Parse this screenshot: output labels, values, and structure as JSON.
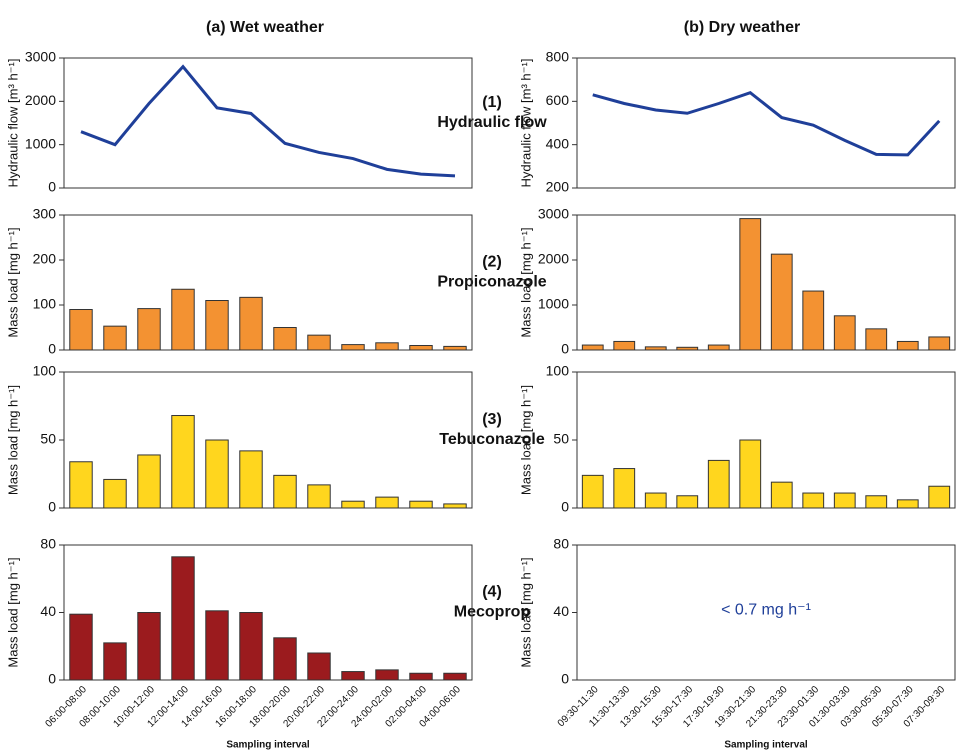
{
  "columns": [
    "(a) Wet weather",
    "(b) Dry weather"
  ],
  "rows": [
    {
      "number": "(1)",
      "label": "Hydraulic flow"
    },
    {
      "number": "(2)",
      "label": "Propiconazole"
    },
    {
      "number": "(3)",
      "label": "Tebuconazole"
    },
    {
      "number": "(4)",
      "label": "Mecoprop"
    }
  ],
  "chart_data": [
    {
      "type": "line",
      "ylabel": "Hydraulic flow [m³ h⁻¹]",
      "color": "#1f3f99",
      "values": [
        1300,
        1000,
        1950,
        2800,
        1850,
        1720,
        1030,
        820,
        680,
        430,
        320,
        280
      ],
      "ylim": [
        0,
        3000
      ],
      "yticks": [
        0,
        1000,
        2000,
        3000
      ]
    },
    {
      "type": "line",
      "ylabel": "Hydraulic flow [m³ h⁻¹]",
      "color": "#1f3f99",
      "values": [
        630,
        590,
        560,
        545,
        590,
        640,
        525,
        490,
        420,
        355,
        353,
        510
      ],
      "ylim": [
        200,
        800
      ],
      "yticks": [
        200,
        400,
        600,
        800
      ]
    },
    {
      "type": "bar",
      "ylabel": "Mass load  [mg h⁻¹]",
      "color": "#f39232",
      "values": [
        90,
        53,
        92,
        135,
        110,
        117,
        50,
        33,
        12,
        16,
        10,
        8
      ],
      "ylim": [
        0,
        300
      ],
      "yticks": [
        0,
        100,
        200,
        300
      ]
    },
    {
      "type": "bar",
      "ylabel": "Mass load  [mg h⁻¹]",
      "color": "#f39232",
      "values": [
        110,
        190,
        70,
        60,
        110,
        2920,
        2130,
        1310,
        760,
        470,
        190,
        290
      ],
      "ylim": [
        0,
        3000
      ],
      "yticks": [
        0,
        1000,
        2000,
        3000
      ]
    },
    {
      "type": "bar",
      "ylabel": "Mass load  [mg h⁻¹]",
      "color": "#ffd61e",
      "values": [
        34,
        21,
        39,
        68,
        50,
        42,
        24,
        17,
        5,
        8,
        5,
        3
      ],
      "ylim": [
        0,
        100
      ],
      "yticks": [
        0,
        50,
        100
      ]
    },
    {
      "type": "bar",
      "ylabel": "Mass load  [mg h⁻¹]",
      "color": "#ffd61e",
      "values": [
        24,
        29,
        11,
        9,
        35,
        50,
        19,
        11,
        11,
        9,
        6,
        16
      ],
      "ylim": [
        0,
        100
      ],
      "yticks": [
        0,
        50,
        100
      ]
    },
    {
      "type": "bar",
      "ylabel": "Mass load  [mg h⁻¹]",
      "color": "#9b1b1e",
      "values": [
        39,
        22,
        40,
        73,
        41,
        40,
        25,
        16,
        5,
        6,
        4,
        4
      ],
      "ylim": [
        0,
        80
      ],
      "yticks": [
        0,
        40,
        80
      ],
      "xlabel": "Sampling interval",
      "categories": [
        "06:00-08:00",
        "08:00-10:00",
        "10:00-12:00",
        "12:00-14:00",
        "14:00-16:00",
        "16:00-18:00",
        "18:00-20:00",
        "20:00-22:00",
        "22:00-24:00",
        "24:00-02:00",
        "02:00-04:00",
        "04:00-06:00"
      ]
    },
    {
      "type": "bar",
      "ylabel": "Mass load  [mg h⁻¹]",
      "annotation": "< 0.7 mg h⁻¹",
      "ylim": [
        0,
        80
      ],
      "yticks": [
        0,
        40,
        80
      ],
      "xlabel": "Sampling interval",
      "categories": [
        "09:30-11:30",
        "11:30-13:30",
        "13:30-15:30",
        "15:30-17:30",
        "17:30-19:30",
        "19:30-21:30",
        "21:30-23:30",
        "23:30-01:30",
        "01:30-03:30",
        "03:30-05:30",
        "05:30-07:30",
        "07:30-09:30"
      ]
    }
  ]
}
